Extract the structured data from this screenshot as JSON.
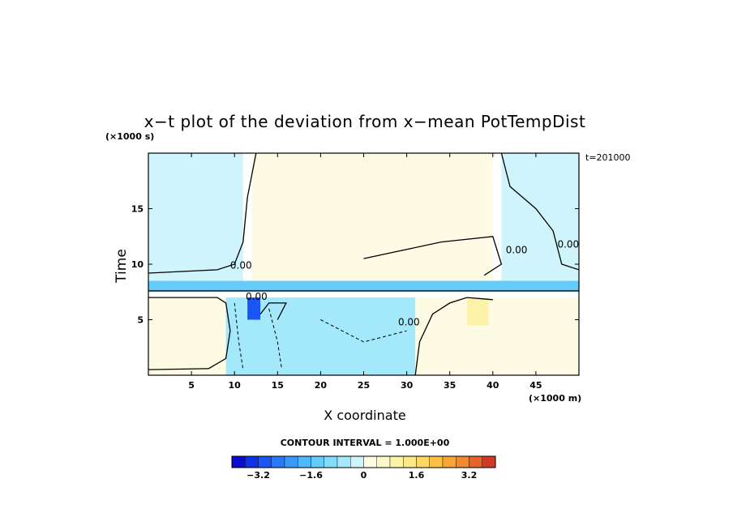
{
  "chart_data": {
    "type": "heatmap",
    "title": "x−t plot of the deviation from x−mean PotTempDist",
    "xlabel": "X coordinate",
    "ylabel": "Time",
    "x_unit": "(×1000 m)",
    "y_unit": "(×1000 s)",
    "time_annotation": "t=201000",
    "xlim": [
      0,
      50
    ],
    "ylim": [
      0,
      20
    ],
    "x_ticks": [
      5,
      10,
      15,
      20,
      25,
      30,
      35,
      40,
      45
    ],
    "y_ticks": [
      5,
      10,
      15
    ],
    "contour_interval_label": "CONTOUR INTERVAL = 1.000E+00",
    "colorbar": {
      "min": -4.0,
      "max": 4.0,
      "step": 0.4,
      "tick_values": [
        -3.2,
        -1.6,
        0,
        1.6,
        3.2
      ],
      "tick_labels": [
        "−3.2",
        "−1.6",
        "0",
        "1.6",
        "3.2"
      ]
    },
    "contour_labels": [
      "0.00"
    ],
    "regions": [
      {
        "name": "upper-left cool region",
        "x": [
          0,
          11
        ],
        "t": [
          8.5,
          20
        ],
        "value": -0.2
      },
      {
        "name": "upper-middle warm region",
        "x": [
          12,
          40
        ],
        "t": [
          8,
          20
        ],
        "value": 0.2
      },
      {
        "name": "upper-right cool region",
        "x": [
          41,
          50
        ],
        "t": [
          8.5,
          20
        ],
        "value": -0.2
      },
      {
        "name": "cold anomaly band",
        "x": [
          0,
          50
        ],
        "t": [
          7.5,
          8.5
        ],
        "value": -1.2
      },
      {
        "name": "lower-left warm region",
        "x": [
          0,
          9
        ],
        "t": [
          0,
          7
        ],
        "value": 0.3
      },
      {
        "name": "lower-middle cool region",
        "x": [
          9,
          31
        ],
        "t": [
          0,
          7
        ],
        "value": -0.6
      },
      {
        "name": "strong cold core",
        "x": [
          11.5,
          13
        ],
        "t": [
          5,
          7
        ],
        "value": -3.0
      },
      {
        "name": "lower-right mixed region",
        "x": [
          31,
          50
        ],
        "t": [
          0,
          7
        ],
        "value": 0.2
      },
      {
        "name": "warm patch",
        "x": [
          37,
          39.5
        ],
        "t": [
          4.5,
          7
        ],
        "value": 1.1
      }
    ]
  }
}
